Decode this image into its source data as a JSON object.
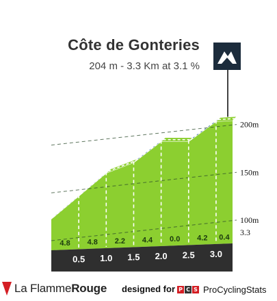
{
  "title": "Côte de Gonteries",
  "subtitle": "204 m - 3.3 Km at 3.1 %",
  "icon": "mountain-summit-icon",
  "colors": {
    "gradient_low": "#8ccf30",
    "gradient_band": "#1d5d86",
    "base": "#2f2f2f",
    "side": "#a8a196"
  },
  "chart_data": {
    "type": "area",
    "title": "Côte de Gonteries",
    "subtitle": "204 m - 3.3 Km at 3.1 %",
    "x_unit": "km",
    "y_unit": "m",
    "km_markers": [
      "0.5",
      "1.0",
      "1.5",
      "2.0",
      "2.5",
      "3.0"
    ],
    "end_marker": "3.3",
    "segments": [
      {
        "from_km": 0.0,
        "to_km": 0.5,
        "gradient": 4.8,
        "label": "4.8"
      },
      {
        "from_km": 0.5,
        "to_km": 1.0,
        "gradient": 4.8,
        "label": "4.8"
      },
      {
        "from_km": 1.0,
        "to_km": 1.5,
        "gradient": 2.2,
        "label": "2.2"
      },
      {
        "from_km": 1.5,
        "to_km": 2.0,
        "gradient": 4.4,
        "label": "4.4"
      },
      {
        "from_km": 2.0,
        "to_km": 2.5,
        "gradient": 0.0,
        "label": "0.0"
      },
      {
        "from_km": 2.5,
        "to_km": 3.0,
        "gradient": 4.2,
        "label": "4.2"
      },
      {
        "from_km": 3.0,
        "to_km": 3.3,
        "gradient": 0.4,
        "label": "0.4"
      }
    ],
    "profile": [
      {
        "km": 0.0,
        "elev": 101
      },
      {
        "km": 0.5,
        "elev": 125
      },
      {
        "km": 1.0,
        "elev": 149
      },
      {
        "km": 1.5,
        "elev": 160
      },
      {
        "km": 2.0,
        "elev": 182
      },
      {
        "km": 2.5,
        "elev": 182
      },
      {
        "km": 3.0,
        "elev": 203
      },
      {
        "km": 3.3,
        "elev": 204
      }
    ],
    "y_ticks": [
      {
        "value": 100,
        "label": "100m"
      },
      {
        "value": 150,
        "label": "150m"
      },
      {
        "value": 200,
        "label": "200m"
      }
    ],
    "ylim": [
      50,
      210
    ]
  },
  "footer": {
    "brand_thin": "La Flamme",
    "brand_bold": "Rouge",
    "designed_for": "designed for",
    "pcs_letters": [
      "P",
      "C",
      "S"
    ],
    "pcs_name": "ProCyclingStats"
  }
}
